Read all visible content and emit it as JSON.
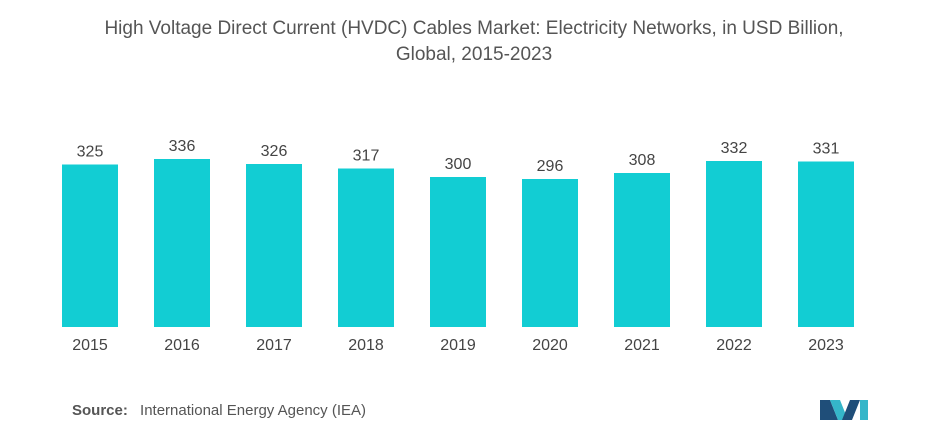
{
  "chart_data": {
    "type": "bar",
    "title_line1": "High Voltage Direct Current (HVDC) Cables Market: Electricity Networks, in USD Billion,",
    "title_line2": "Global, 2015-2023",
    "categories": [
      "2015",
      "2016",
      "2017",
      "2018",
      "2019",
      "2020",
      "2021",
      "2022",
      "2023"
    ],
    "values": [
      325,
      336,
      326,
      317,
      300,
      296,
      308,
      332,
      331
    ],
    "xlabel": "",
    "ylabel": "",
    "ylim": [
      0,
      336
    ],
    "grid": false,
    "legend": "none",
    "bar_color": "#12CDD3"
  },
  "source": {
    "label": "Source:",
    "text": "International Energy Agency (IEA)"
  },
  "colors": {
    "bar": "#12CDD3",
    "logo_dark": "#1F4E79",
    "logo_light": "#35B6C9",
    "text": "#555555"
  },
  "icons": {
    "logo": "mordor-intelligence-logo-icon"
  }
}
